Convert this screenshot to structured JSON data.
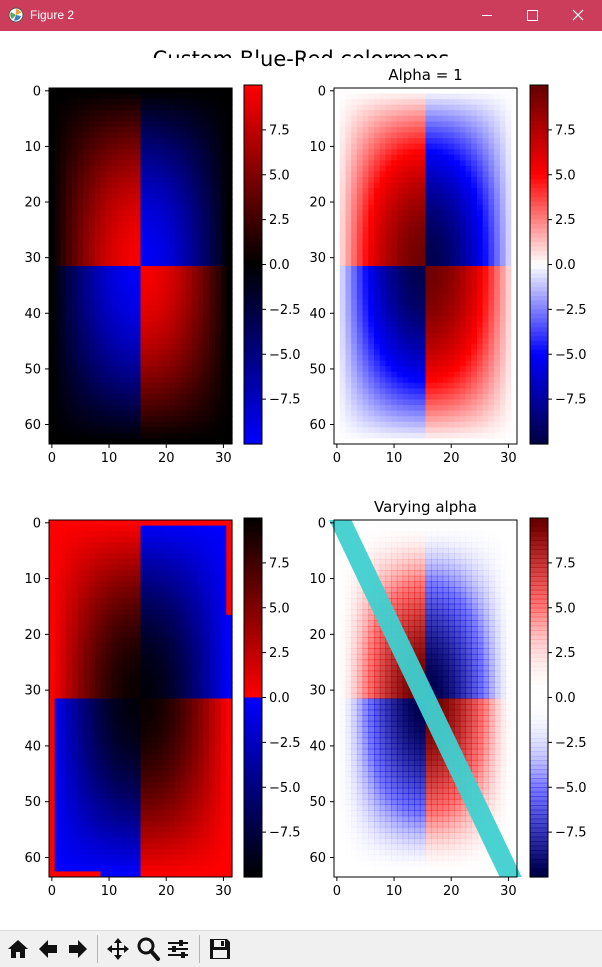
{
  "window": {
    "title": "Figure 2",
    "accent_color": "#cc3d5c",
    "icons": [
      "matplotlib-app-icon",
      "minimize-icon",
      "maximize-icon",
      "close-icon"
    ]
  },
  "toolbar": {
    "buttons": [
      "home-icon",
      "back-icon",
      "forward-icon",
      "pan-icon",
      "zoom-icon",
      "configure-subplots-icon",
      "save-icon"
    ]
  },
  "chart_data": {
    "suptitle": "Custom Blue-Red colormaps",
    "panels": [
      {
        "type": "heatmap",
        "title": "",
        "x_range": [
          0,
          31
        ],
        "y_range": [
          0,
          63
        ],
        "xticks": [
          "0",
          "10",
          "20",
          "30"
        ],
        "yticks": [
          "0",
          "10",
          "20",
          "30",
          "40",
          "50",
          "60"
        ],
        "colormap": "BlueRed1: blue to black to red",
        "colorbar_ticks": [
          "7.5",
          "5.0",
          "2.5",
          "0.0",
          "−2.5",
          "−5.0",
          "−7.5"
        ],
        "colorbar_range": [
          -10,
          10
        ]
      },
      {
        "type": "heatmap",
        "title": "Alpha = 1",
        "x_range": [
          0,
          31
        ],
        "y_range": [
          0,
          63
        ],
        "xticks": [
          "0",
          "10",
          "20",
          "30"
        ],
        "yticks": [
          "0",
          "10",
          "20",
          "30",
          "40",
          "50",
          "60"
        ],
        "colormap": "BlueRed2: dark blue to blue to white to red to dark red",
        "colorbar_ticks": [
          "7.5",
          "5.0",
          "2.5",
          "0.0",
          "−2.5",
          "−5.0",
          "−7.5"
        ],
        "colorbar_range": [
          -10,
          10
        ]
      },
      {
        "type": "heatmap",
        "title": "",
        "x_range": [
          0,
          31
        ],
        "y_range": [
          0,
          63
        ],
        "xticks": [
          "0",
          "10",
          "20",
          "30"
        ],
        "yticks": [
          "0",
          "10",
          "20",
          "30",
          "40",
          "50",
          "60"
        ],
        "colormap": "BlueRed3: black to blue below 0, red to black above 0",
        "colorbar_ticks": [
          "7.5",
          "5.0",
          "2.5",
          "0.0",
          "−2.5",
          "−5.0",
          "−7.5"
        ],
        "colorbar_range": [
          -10,
          10
        ]
      },
      {
        "type": "heatmap",
        "title": "Varying alpha",
        "x_range": [
          0,
          31
        ],
        "y_range": [
          0,
          63
        ],
        "xticks": [
          "0",
          "10",
          "20",
          "30"
        ],
        "yticks": [
          "0",
          "10",
          "20",
          "30",
          "40",
          "50",
          "60"
        ],
        "colormap": "BlueRedAlpha: blue to white to red with alpha rising away from 0",
        "overlay": "diagonal cyan line from (0,0) to (31,63)",
        "colorbar_ticks": [
          "7.5",
          "5.0",
          "2.5",
          "0.0",
          "−2.5",
          "−5.0",
          "−7.5"
        ],
        "colorbar_range": [
          -10,
          10
        ]
      }
    ],
    "colors": {
      "blue": "#0000ff",
      "red": "#ff0000",
      "cyan": "#40d0d0"
    }
  }
}
